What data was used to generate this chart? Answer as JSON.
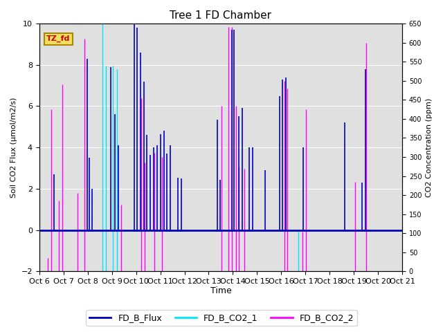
{
  "title": "Tree 1 FD Chamber",
  "xlabel": "Time",
  "ylabel_left": "Soil CO2 Flux (μmol/m2/s)",
  "ylabel_right": "CO2 Concentration (ppm)",
  "ylim_left": [
    -2,
    10
  ],
  "ylim_right": [
    0,
    650
  ],
  "xtick_labels": [
    "Oct 6",
    "Oct 7",
    "Oct 8",
    "Oct 9",
    "Oct 10",
    "Oct 11",
    "Oct 12",
    "Oct 13",
    "Oct 14",
    "Oct 15",
    "Oct 16",
    "Oct 17",
    "Oct 18",
    "Oct 19",
    "Oct 20",
    "Oct 21"
  ],
  "annotation_text": "TZ_fd",
  "annotation_color_bg": "#f0e060",
  "annotation_color_text": "#cc0000",
  "bg_color": "#e0e0e0",
  "flux_color": "#0000bb",
  "co2_1_color": "#00e5ff",
  "co2_2_color": "#ff00ff",
  "flux_line_color": "#0000bb",
  "flux_data": [
    [
      6.62,
      2.7
    ],
    [
      7.75,
      0.0
    ],
    [
      7.97,
      8.3
    ],
    [
      8.08,
      3.5
    ],
    [
      8.18,
      2.0
    ],
    [
      8.95,
      7.9
    ],
    [
      9.12,
      5.6
    ],
    [
      9.28,
      4.1
    ],
    [
      9.93,
      10.0
    ],
    [
      10.05,
      9.8
    ],
    [
      10.18,
      8.6
    ],
    [
      10.32,
      7.2
    ],
    [
      10.45,
      4.6
    ],
    [
      10.58,
      3.65
    ],
    [
      10.72,
      4.0
    ],
    [
      10.87,
      4.1
    ],
    [
      11.02,
      4.65
    ],
    [
      11.15,
      4.8
    ],
    [
      11.28,
      3.7
    ],
    [
      11.42,
      4.1
    ],
    [
      11.72,
      2.55
    ],
    [
      11.88,
      2.5
    ],
    [
      12.62,
      0.0
    ],
    [
      12.72,
      0.0
    ],
    [
      13.35,
      5.35
    ],
    [
      13.48,
      2.45
    ],
    [
      13.95,
      9.7
    ],
    [
      14.05,
      9.7
    ],
    [
      14.25,
      5.5
    ],
    [
      14.38,
      5.9
    ],
    [
      14.68,
      4.0
    ],
    [
      14.82,
      4.0
    ],
    [
      15.32,
      2.9
    ],
    [
      15.45,
      0.0
    ],
    [
      15.92,
      6.5
    ],
    [
      16.05,
      7.3
    ],
    [
      16.18,
      7.4
    ],
    [
      16.92,
      4.0
    ],
    [
      18.62,
      5.2
    ],
    [
      19.35,
      2.3
    ],
    [
      19.48,
      7.8
    ]
  ],
  "co2_1_data": [
    [
      8.62,
      650
    ],
    [
      8.75,
      540
    ],
    [
      9.05,
      540
    ],
    [
      9.22,
      530
    ],
    [
      16.72,
      105
    ]
  ],
  "co2_2_data": [
    [
      6.35,
      35
    ],
    [
      6.48,
      425
    ],
    [
      6.82,
      185
    ],
    [
      6.95,
      490
    ],
    [
      7.45,
      0
    ],
    [
      7.58,
      205
    ],
    [
      7.88,
      610
    ],
    [
      8.0,
      0
    ],
    [
      8.82,
      0
    ],
    [
      9.38,
      175
    ],
    [
      9.52,
      0
    ],
    [
      10.08,
      0
    ],
    [
      10.22,
      455
    ],
    [
      10.35,
      285
    ],
    [
      10.62,
      0
    ],
    [
      10.75,
      310
    ],
    [
      11.08,
      300
    ],
    [
      11.22,
      0
    ],
    [
      11.38,
      0
    ],
    [
      11.52,
      0
    ],
    [
      12.08,
      0
    ],
    [
      12.22,
      0
    ],
    [
      12.52,
      0
    ],
    [
      12.62,
      0
    ],
    [
      13.0,
      -55
    ],
    [
      13.12,
      0
    ],
    [
      13.38,
      0
    ],
    [
      13.52,
      435
    ],
    [
      13.82,
      640
    ],
    [
      13.95,
      640
    ],
    [
      14.12,
      435
    ],
    [
      14.25,
      275
    ],
    [
      14.48,
      270
    ],
    [
      14.58,
      0
    ],
    [
      14.88,
      0
    ],
    [
      14.95,
      0
    ],
    [
      15.52,
      0
    ],
    [
      15.65,
      0
    ],
    [
      15.88,
      0
    ],
    [
      16.12,
      500
    ],
    [
      16.25,
      480
    ],
    [
      16.52,
      0
    ],
    [
      16.62,
      0
    ],
    [
      16.88,
      105
    ],
    [
      17.02,
      425
    ],
    [
      17.25,
      0
    ],
    [
      17.52,
      0
    ],
    [
      17.65,
      0
    ],
    [
      18.02,
      0
    ],
    [
      18.12,
      0
    ],
    [
      18.38,
      0
    ],
    [
      18.52,
      0
    ],
    [
      19.05,
      235
    ],
    [
      19.18,
      0
    ],
    [
      19.38,
      0
    ],
    [
      19.52,
      600
    ],
    [
      19.62,
      0
    ],
    [
      19.75,
      0
    ],
    [
      20.05,
      0
    ]
  ]
}
